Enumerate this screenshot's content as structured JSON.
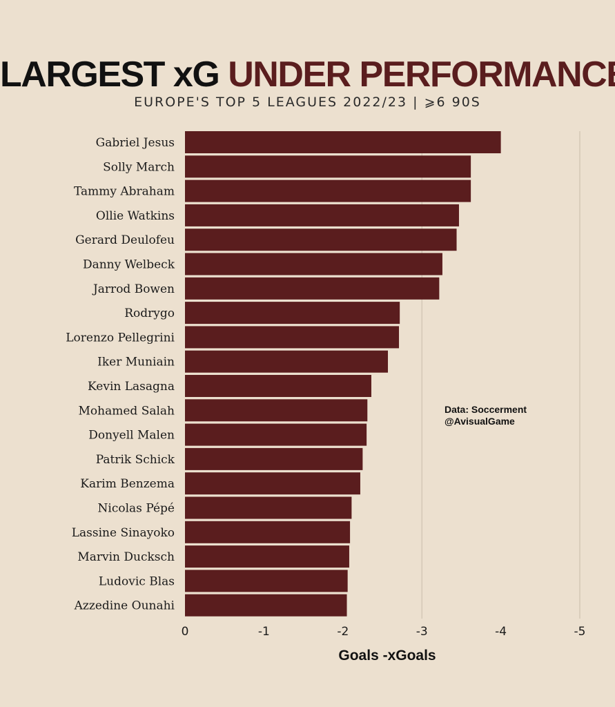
{
  "header": {
    "title_part1": "LARGEST xG",
    "title_part2": "UNDER PERFORMANCE",
    "subtitle": "EUROPE'S TOP 5 LEAGUES 2022/23  |  ⩾6 90S"
  },
  "credits": {
    "line1": "Data: Soccerment",
    "line2": "@AvisualGame"
  },
  "chart_data": {
    "type": "bar",
    "orientation": "horizontal",
    "title": "LARGEST xG UNDER PERFORMANCE",
    "subtitle": "EUROPE'S TOP 5 LEAGUES 2022/23  |  ⩾6 90S",
    "xlabel": "Goals -xGoals",
    "ylabel": "",
    "xlim": [
      0,
      -5
    ],
    "xticks": [
      0,
      -1,
      -2,
      -3,
      -4,
      -5
    ],
    "xtick_labels": [
      "0",
      "-1",
      "-2",
      "-3",
      "-4",
      "-5"
    ],
    "grid": "vertical at -3 and -5",
    "bar_color": "#5a1d1e",
    "categories": [
      "Gabriel Jesus",
      "Solly March",
      "Tammy Abraham",
      "Ollie Watkins",
      "Gerard Deulofeu",
      "Danny Welbeck",
      "Jarrod Bowen",
      "Rodrygo",
      "Lorenzo Pellegrini",
      "Iker Muniain",
      "Kevin Lasagna",
      "Mohamed Salah",
      "Donyell Malen",
      "Patrik Schick",
      "Karim Benzema",
      "Nicolas Pépé",
      "Lassine Sinayoko",
      "Marvin Ducksch",
      "Ludovic Blas",
      "Azzedine Ounahi"
    ],
    "values": [
      -4.0,
      -3.62,
      -3.62,
      -3.47,
      -3.44,
      -3.26,
      -3.22,
      -2.72,
      -2.71,
      -2.57,
      -2.36,
      -2.31,
      -2.3,
      -2.25,
      -2.22,
      -2.11,
      -2.09,
      -2.08,
      -2.06,
      -2.05
    ]
  }
}
